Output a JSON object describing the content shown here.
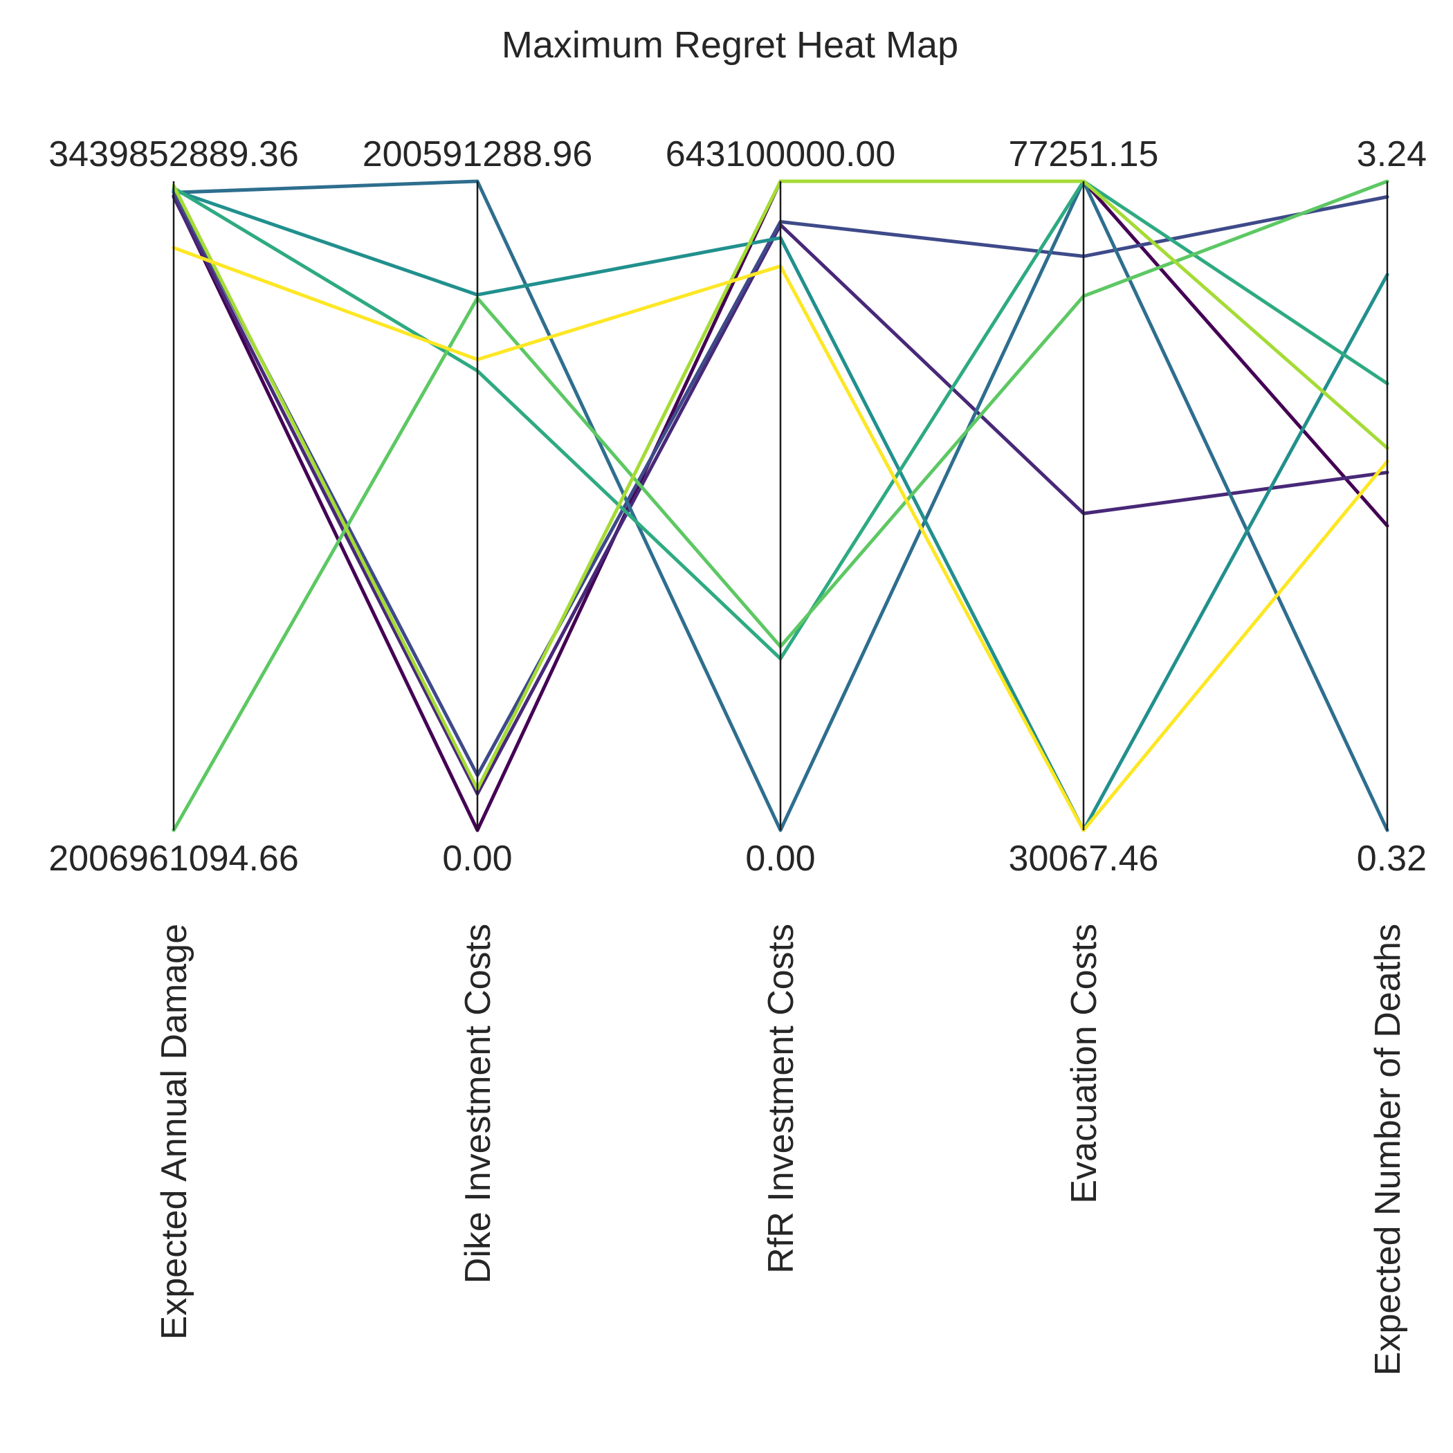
{
  "chart_data": {
    "type": "parallel-coordinates",
    "title": "Maximum Regret Heat Map",
    "grid": false,
    "legend": "none",
    "axes": [
      {
        "label": "Expected Annual Damage",
        "min": 2006961094.66,
        "max": 3439852889.36,
        "min_label": "2006961094.66",
        "max_label": "3439852889.36"
      },
      {
        "label": "Dike Investment Costs",
        "min": 0.0,
        "max": 200591288.96,
        "min_label": "0.00",
        "max_label": "200591288.96"
      },
      {
        "label": "RfR Investment Costs",
        "min": 0.0,
        "max": 643100000.0,
        "min_label": "0.00",
        "max_label": "643100000.00"
      },
      {
        "label": "Evacuation Costs",
        "min": 30067.46,
        "max": 77251.15,
        "min_label": "30067.46",
        "max_label": "77251.15"
      },
      {
        "label": "Expected Number of Deaths",
        "min": 0.32,
        "max": 3.24,
        "min_label": "0.32",
        "max_label": "3.24"
      }
    ],
    "series": [
      {
        "color": "#440154",
        "values": [
          3408000000,
          0,
          643100000,
          77251.15,
          1.69
        ]
      },
      {
        "color": "#482878",
        "values": [
          3405000000,
          11300000,
          600000000,
          53100,
          1.93
        ]
      },
      {
        "color": "#3e4a89",
        "values": [
          3418000000,
          17000000,
          603000000,
          71800,
          3.17
        ]
      },
      {
        "color": "#2e6e8e",
        "values": [
          3415000000,
          200591288.96,
          0,
          77251.15,
          0.32
        ]
      },
      {
        "color": "#21908d",
        "values": [
          3420000000,
          165500000,
          587000000,
          30067.46,
          2.82
        ]
      },
      {
        "color": "#2eaa82",
        "values": [
          3425000000,
          142000000,
          170000000,
          77251.15,
          2.33
        ]
      },
      {
        "color": "#5dc863",
        "values": [
          2006961094.66,
          164500000,
          182000000,
          68900,
          3.24
        ]
      },
      {
        "color": "#a5db36",
        "values": [
          3430000000,
          12700000,
          643100000,
          77251.15,
          2.04
        ]
      },
      {
        "color": "#fde725",
        "values": [
          3293000000,
          145500000,
          559000000,
          30067.46,
          1.98
        ]
      }
    ]
  }
}
